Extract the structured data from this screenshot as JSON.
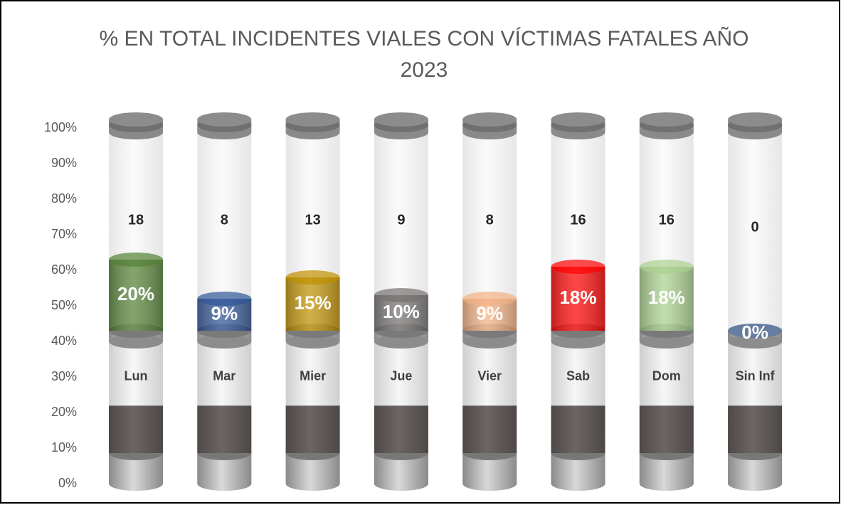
{
  "chart_data": {
    "type": "bar",
    "title": [
      "% EN TOTAL INCIDENTES VIALES CON VÍCTIMAS FATALES AÑO",
      "2023"
    ],
    "categories": [
      "Lun",
      "Mar",
      "Mier",
      "Jue",
      "Vier",
      "Sab",
      "Dom",
      "Sin Inf"
    ],
    "ylim": [
      0,
      100
    ],
    "yticks": [
      {
        "value": 0,
        "label": "0%"
      },
      {
        "value": 10,
        "label": "10%"
      },
      {
        "value": 20,
        "label": "20%"
      },
      {
        "value": 30,
        "label": "30%"
      },
      {
        "value": 40,
        "label": "40%"
      },
      {
        "value": 50,
        "label": "50%"
      },
      {
        "value": 60,
        "label": "60%"
      },
      {
        "value": 70,
        "label": "70%"
      },
      {
        "value": 80,
        "label": "80%"
      },
      {
        "value": 90,
        "label": "90%"
      },
      {
        "value": 100,
        "label": "100%"
      }
    ],
    "series": [
      {
        "values": [
          43,
          43,
          43,
          43,
          43,
          43,
          43,
          43
        ]
      },
      {
        "values": [
          20,
          9,
          15,
          10,
          9,
          18,
          18,
          0
        ],
        "value_labels": [
          "20%",
          "9%",
          "15%",
          "10%",
          "9%",
          "18%",
          "18%",
          "0%"
        ],
        "colors": [
          "#548235",
          "#2f5597",
          "#bf9000",
          "#767171",
          "#f4b183",
          "#ff0000",
          "#a9d18e",
          "#5b7fb0"
        ]
      }
    ],
    "counts": [
      18,
      8,
      13,
      9,
      8,
      16,
      16,
      0
    ]
  }
}
